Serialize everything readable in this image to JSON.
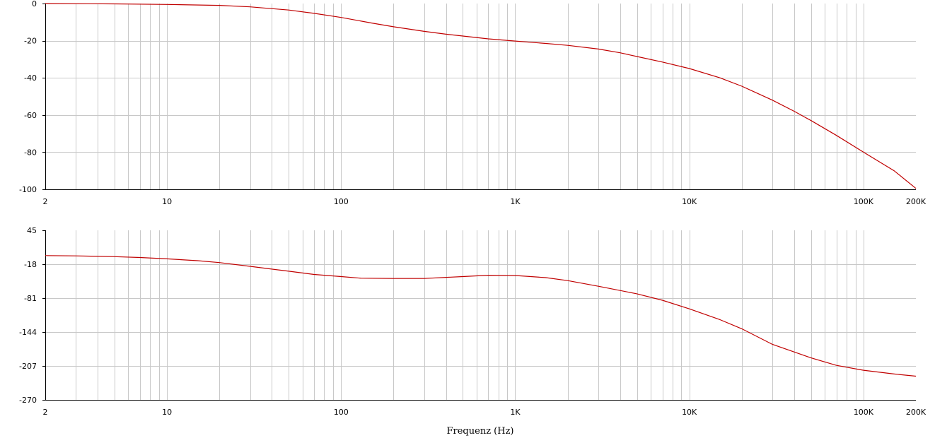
{
  "chart_data": [
    {
      "type": "line",
      "title": "",
      "xlabel": "",
      "ylabel": "",
      "xscale": "log",
      "xlim": [
        2,
        200000
      ],
      "ylim": [
        -100,
        0
      ],
      "yticks": [
        0,
        -20,
        -40,
        -60,
        -80,
        -100
      ],
      "ytick_labels": [
        "0",
        "-20",
        "-40",
        "-60",
        "-80",
        "-100"
      ],
      "xticks": [
        2,
        10,
        100,
        1000,
        10000,
        100000,
        200000
      ],
      "xtick_labels": [
        "2",
        "10",
        "100",
        "1K",
        "10K",
        "100K",
        "200K"
      ],
      "grid": true,
      "line_color": "#c00000",
      "series": [
        {
          "x": [
            2,
            5,
            10,
            20,
            30,
            50,
            70,
            100,
            150,
            200,
            300,
            400,
            500,
            700,
            1000,
            1500,
            2000,
            3000,
            4000,
            5000,
            7000,
            10000,
            15000,
            20000,
            30000,
            40000,
            50000,
            70000,
            100000,
            150000,
            200000
          ],
          "y": [
            0,
            -0.2,
            -0.5,
            -1,
            -1.8,
            -3.5,
            -5.3,
            -7.5,
            -10.5,
            -12.5,
            -15,
            -16.5,
            -17.5,
            -19,
            -20.2,
            -21.5,
            -22.5,
            -24.5,
            -26.5,
            -28.5,
            -31.5,
            -35,
            -40,
            -44.5,
            -52,
            -58,
            -63,
            -71,
            -80,
            -90,
            -99.5
          ]
        }
      ]
    },
    {
      "type": "line",
      "title": "",
      "xlabel": "Frequenz (Hz)",
      "ylabel": "",
      "xscale": "log",
      "xlim": [
        2,
        200000
      ],
      "ylim": [
        -270,
        45
      ],
      "yticks": [
        45,
        -18,
        -81,
        -144,
        -207,
        -270
      ],
      "ytick_labels": [
        "45",
        "-18",
        "-81",
        "-144",
        "-207",
        "-270"
      ],
      "xticks": [
        2,
        10,
        100,
        1000,
        10000,
        100000,
        200000
      ],
      "xtick_labels": [
        "2",
        "10",
        "100",
        "1K",
        "10K",
        "100K",
        "200K"
      ],
      "grid": true,
      "line_color": "#c00000",
      "series": [
        {
          "x": [
            2,
            3,
            5,
            7,
            10,
            15,
            20,
            30,
            50,
            70,
            100,
            130,
            200,
            300,
            500,
            700,
            1000,
            1500,
            2000,
            3000,
            5000,
            7000,
            10000,
            15000,
            20000,
            30000,
            50000,
            70000,
            100000,
            150000,
            200000
          ],
          "y": [
            -2,
            -2.5,
            -4,
            -5.5,
            -8,
            -11.5,
            -15,
            -22,
            -31,
            -37,
            -41,
            -44,
            -44.5,
            -44.5,
            -41,
            -38.5,
            -39,
            -43,
            -48.5,
            -59,
            -73,
            -85,
            -101,
            -121,
            -138,
            -167,
            -192,
            -206,
            -215,
            -222,
            -226
          ]
        }
      ]
    }
  ]
}
